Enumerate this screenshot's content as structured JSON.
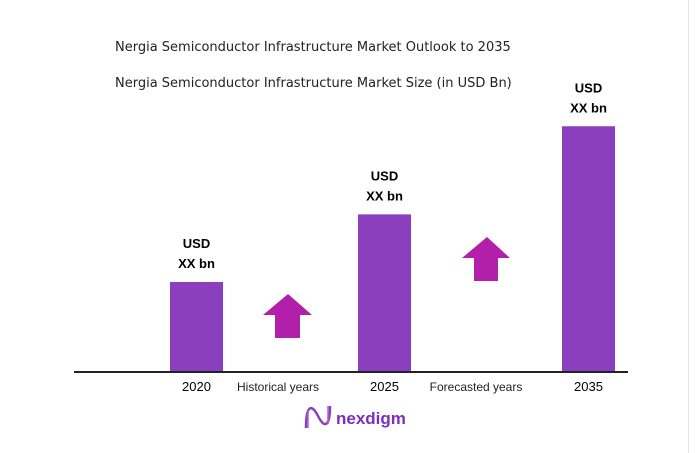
{
  "chart_data": {
    "type": "bar",
    "title": "Nergia Semiconductor Infrastructure Market Outlook to 2035",
    "subtitle": "Nergia Semiconductor Infrastructure Market Size (in USD Bn)",
    "categories": [
      "2020",
      "2025",
      "2035"
    ],
    "values": [
      1.0,
      1.76,
      2.75
    ],
    "data_labels": [
      [
        "USD",
        "XX bn"
      ],
      [
        "USD",
        "XX bn"
      ],
      [
        "USD",
        "XX bn"
      ]
    ],
    "period_labels": [
      "Historical years",
      "Forecasted years"
    ],
    "grid": false,
    "legend": "none"
  },
  "logo": {
    "text": "nexdigm"
  },
  "colors": {
    "bar": "#8a3fbf",
    "arrow": "#b21fa8",
    "axis": "#222222",
    "logo": "#7a2fc0"
  },
  "icons": [
    "up-arrow-icon",
    "up-arrow-icon",
    "nexdigm-logo-icon"
  ]
}
